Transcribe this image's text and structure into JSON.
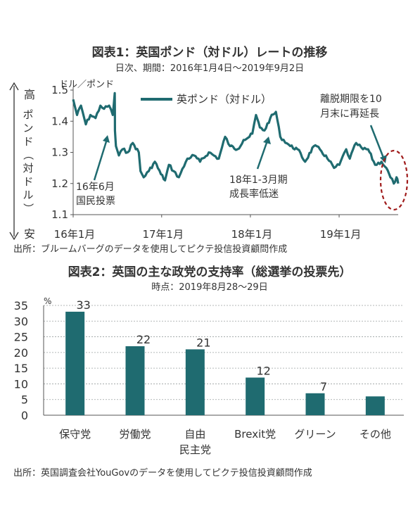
{
  "chart_data": [
    {
      "type": "line",
      "title": "図表1：英国ポンド（対ドル）レートの推移",
      "subtitle": "日次、期間：2016年1月4日～2019年9月2日",
      "ylabel_unit": "ドル／ポンド",
      "ylabel": "ポンド（対ドル）",
      "y_high_label": "高",
      "y_low_label": "安",
      "ylim": [
        1.1,
        1.5
      ],
      "yticks": [
        "1.1",
        "1.2",
        "1.3",
        "1.4",
        "1.5"
      ],
      "xticks": [
        "16年1月",
        "17年1月",
        "18年1月",
        "19年1月"
      ],
      "x_range": [
        "2016-01-04",
        "2019-09-02"
      ],
      "legend": "英ポンド（対ドル）",
      "legend_position": "top-center",
      "color": "#1f6b70",
      "annotations": [
        {
          "text": [
            "16年6月",
            "国民投票"
          ],
          "date": "2016-06-24"
        },
        {
          "text": [
            "18年1-3月期",
            "成長率低迷"
          ],
          "date": "2018-01-25"
        },
        {
          "text": [
            "離脱期限を10",
            "月末に再延長"
          ],
          "date": "2019-08-15"
        }
      ],
      "source": "出所：ブルームバーグのデータを使用してピクテ投信投資顧問作成",
      "series": [
        {
          "values": [
            [
              "2016-01-04",
              1.47
            ],
            [
              "2016-01-20",
              1.42
            ],
            [
              "2016-02-05",
              1.45
            ],
            [
              "2016-02-25",
              1.39
            ],
            [
              "2016-03-15",
              1.42
            ],
            [
              "2016-04-05",
              1.41
            ],
            [
              "2016-04-25",
              1.45
            ],
            [
              "2016-05-10",
              1.44
            ],
            [
              "2016-05-31",
              1.45
            ],
            [
              "2016-06-15",
              1.42
            ],
            [
              "2016-06-23",
              1.49
            ],
            [
              "2016-06-24",
              1.37
            ],
            [
              "2016-06-28",
              1.32
            ],
            [
              "2016-07-10",
              1.29
            ],
            [
              "2016-07-25",
              1.31
            ],
            [
              "2016-08-15",
              1.3
            ],
            [
              "2016-09-05",
              1.33
            ],
            [
              "2016-09-30",
              1.3
            ],
            [
              "2016-10-07",
              1.24
            ],
            [
              "2016-10-20",
              1.22
            ],
            [
              "2016-11-10",
              1.24
            ],
            [
              "2016-12-05",
              1.27
            ],
            [
              "2016-12-30",
              1.23
            ],
            [
              "2017-01-16",
              1.21
            ],
            [
              "2017-02-01",
              1.26
            ],
            [
              "2017-02-20",
              1.24
            ],
            [
              "2017-03-14",
              1.22
            ],
            [
              "2017-04-18",
              1.28
            ],
            [
              "2017-05-15",
              1.29
            ],
            [
              "2017-06-09",
              1.27
            ],
            [
              "2017-07-15",
              1.3
            ],
            [
              "2017-08-25",
              1.28
            ],
            [
              "2017-09-20",
              1.35
            ],
            [
              "2017-10-10",
              1.32
            ],
            [
              "2017-11-10",
              1.31
            ],
            [
              "2017-12-05",
              1.34
            ],
            [
              "2017-12-29",
              1.35
            ],
            [
              "2018-01-10",
              1.36
            ],
            [
              "2018-01-25",
              1.42
            ],
            [
              "2018-02-10",
              1.38
            ],
            [
              "2018-03-01",
              1.37
            ],
            [
              "2018-03-25",
              1.41
            ],
            [
              "2018-04-17",
              1.43
            ],
            [
              "2018-05-05",
              1.35
            ],
            [
              "2018-06-15",
              1.32
            ],
            [
              "2018-07-15",
              1.31
            ],
            [
              "2018-08-15",
              1.27
            ],
            [
              "2018-09-20",
              1.32
            ],
            [
              "2018-10-15",
              1.31
            ],
            [
              "2018-11-15",
              1.28
            ],
            [
              "2018-12-12",
              1.25
            ],
            [
              "2019-01-03",
              1.26
            ],
            [
              "2019-01-31",
              1.31
            ],
            [
              "2019-02-15",
              1.28
            ],
            [
              "2019-03-13",
              1.33
            ],
            [
              "2019-04-10",
              1.31
            ],
            [
              "2019-05-01",
              1.31
            ],
            [
              "2019-05-30",
              1.26
            ],
            [
              "2019-06-25",
              1.27
            ],
            [
              "2019-07-15",
              1.25
            ],
            [
              "2019-08-01",
              1.22
            ],
            [
              "2019-08-15",
              1.2
            ],
            [
              "2019-08-26",
              1.22
            ],
            [
              "2019-09-02",
              1.2
            ]
          ]
        }
      ]
    },
    {
      "type": "bar",
      "title": "図表2：英国の主な政党の支持率（総選挙の投票先）",
      "subtitle": "時点：2019年8月28～29日",
      "unit_label": "%",
      "ylim": [
        0,
        35
      ],
      "yticks": [
        "0",
        "5",
        "10",
        "15",
        "20",
        "25",
        "30",
        "35"
      ],
      "categories": [
        [
          "保守党"
        ],
        [
          "労働党"
        ],
        [
          "自由",
          "民主党"
        ],
        [
          "Brexit党"
        ],
        [
          "グリーン"
        ],
        [
          "その他"
        ]
      ],
      "values": [
        33,
        22,
        21,
        12,
        7,
        6
      ],
      "data_labels": [
        "33",
        "22",
        "21",
        "12",
        "7",
        ""
      ],
      "color": "#1f6b70",
      "source": "出所：英国調査会社YouGovのデータを使用してピクテ投信投資顧問作成"
    }
  ]
}
